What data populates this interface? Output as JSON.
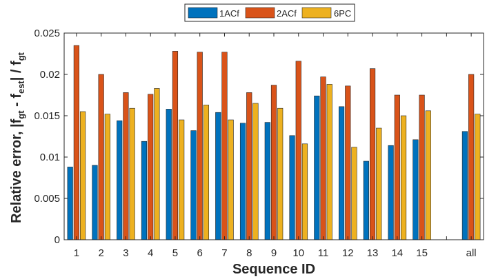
{
  "chart_data": {
    "type": "bar",
    "categories": [
      "1",
      "2",
      "3",
      "4",
      "5",
      "6",
      "7",
      "8",
      "9",
      "10",
      "11",
      "12",
      "13",
      "14",
      "15",
      "",
      "all"
    ],
    "series": [
      {
        "name": "1ACf",
        "color": "#0072BD",
        "values": [
          0.0088,
          0.009,
          0.0144,
          0.0119,
          0.0158,
          0.0132,
          0.0154,
          0.0141,
          0.0142,
          0.0126,
          0.0174,
          0.0161,
          0.0095,
          0.0114,
          0.0121,
          null,
          0.0131
        ]
      },
      {
        "name": "2ACf",
        "color": "#D95319",
        "values": [
          0.0235,
          0.02,
          0.0178,
          0.0176,
          0.0228,
          0.0227,
          0.0227,
          0.0178,
          0.0187,
          0.0216,
          0.0197,
          0.0186,
          0.0207,
          0.0175,
          0.0175,
          null,
          0.02
        ]
      },
      {
        "name": "6PC",
        "color": "#EDB120",
        "values": [
          0.0155,
          0.0152,
          0.0159,
          0.0183,
          0.0145,
          0.0163,
          0.0145,
          0.0165,
          0.0159,
          0.0116,
          0.0188,
          0.0112,
          0.0135,
          0.015,
          0.0156,
          null,
          0.0152
        ]
      }
    ],
    "title": "",
    "xlabel": "Sequence ID",
    "ylabel_parts": {
      "prefix": "Relative error, |f",
      "sub1": "gt",
      "mid1": " - f",
      "sub2": "est",
      "mid2": "| / f",
      "sub3": "gt"
    },
    "ylim": [
      0,
      0.025
    ],
    "yticks": [
      0,
      0.005,
      0.01,
      0.015,
      0.02,
      0.025
    ],
    "ytick_labels": [
      "0",
      "0.005",
      "0.01",
      "0.015",
      "0.02",
      "0.025"
    ],
    "grid": false,
    "legend_position": "top-center-outside"
  }
}
